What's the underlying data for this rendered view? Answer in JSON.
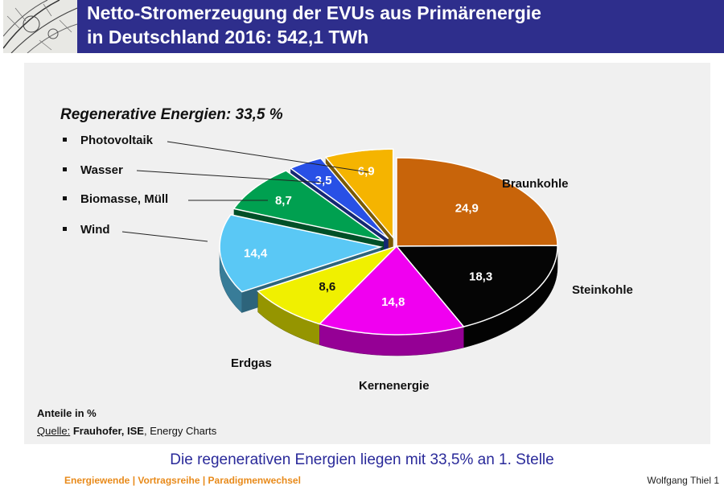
{
  "header": {
    "title_line1": "Netto-Stromerzeugung der EVUs aus Primärenergie",
    "title_line2": "in Deutschland 2016: 542,1 TWh"
  },
  "colors": {
    "title_bar": "#2e2e8c",
    "conclusion_text": "#2a2a9a",
    "footer_text": "#e88a1a"
  },
  "chart_data": {
    "type": "pie",
    "subtitle": "Regenerative Energien:  33,5 %",
    "units_note": "Anteile in %",
    "legend_position": "left",
    "renewable_legend": [
      "Photovoltaik",
      "Wasser",
      "Biomasse, Müll",
      "Wind"
    ],
    "slices": [
      {
        "label": "Braunkohle",
        "value": 24.9,
        "value_label": "24,9",
        "color": "#c8640a"
      },
      {
        "label": "Steinkohle",
        "value": 18.3,
        "value_label": "18,3",
        "color": "#050505"
      },
      {
        "label": "Kernenergie",
        "value": 14.8,
        "value_label": "14,8",
        "color": "#f000f0"
      },
      {
        "label": "Erdgas",
        "value": 8.6,
        "value_label": "8,6",
        "color": "#f0f000"
      },
      {
        "label": "Wind",
        "value": 14.4,
        "value_label": "14,4",
        "color": "#5ac8f5"
      },
      {
        "label": "Biomasse, Müll",
        "value": 8.7,
        "value_label": "8,7",
        "color": "#00a050"
      },
      {
        "label": "Wasser",
        "value": 3.5,
        "value_label": "3,5",
        "color": "#2850e6"
      },
      {
        "label": "Photovoltaik",
        "value": 6.9,
        "value_label": "6,9",
        "color": "#f5b400"
      }
    ]
  },
  "source": {
    "label": "Quelle:",
    "bold": "Frauhofer, ISE",
    "rest": ", Energy Charts"
  },
  "conclusion": "Die regenerativen Energien liegen mit 33,5% an 1. Stelle",
  "footer": {
    "left": "Energiewende | Vortragsreihe | Paradigmenwechsel",
    "right": "Wolfgang Thiel 1"
  }
}
